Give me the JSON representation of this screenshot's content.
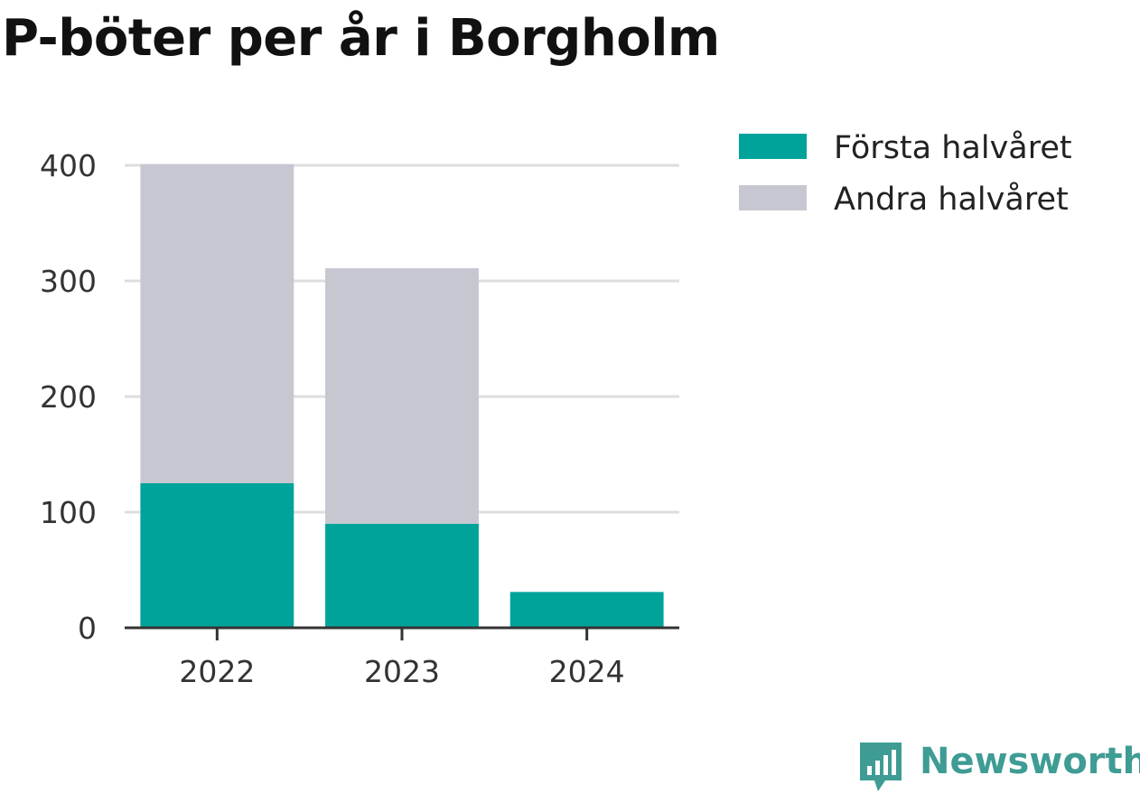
{
  "chart_data": {
    "type": "bar",
    "stacked": true,
    "title": "P-böter per år i Borgholm",
    "categories": [
      "2022",
      "2023",
      "2024"
    ],
    "series": [
      {
        "name": "Första halvåret",
        "values": [
          125,
          90,
          31
        ],
        "color": "#00a39a"
      },
      {
        "name": "Andra halvåret",
        "values": [
          276,
          221,
          0
        ],
        "color": "#c7c7d1"
      }
    ],
    "ylim": [
      0,
      400
    ],
    "yticks": [
      0,
      100,
      200,
      300,
      400
    ],
    "grid": true,
    "legend_position": "top-right",
    "xlabel": "",
    "ylabel": ""
  },
  "branding": {
    "name": "Newsworthy",
    "icon": "newsworthy-logo-icon",
    "color": "#3e9c94"
  }
}
